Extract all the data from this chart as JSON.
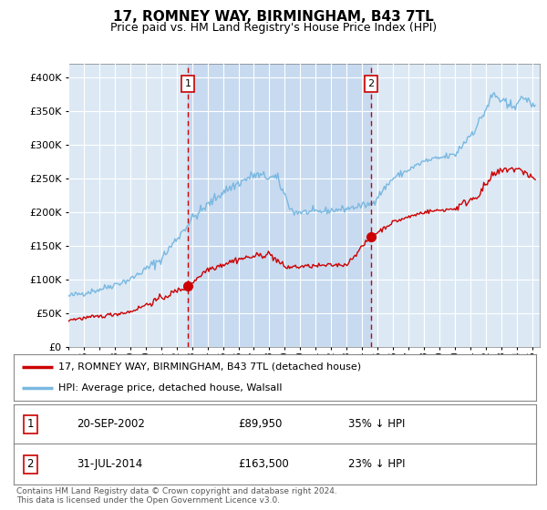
{
  "title": "17, ROMNEY WAY, BIRMINGHAM, B43 7TL",
  "subtitle": "Price paid vs. HM Land Registry's House Price Index (HPI)",
  "bg_color": "#dce9f5",
  "hpi_color": "#7ab8e0",
  "price_color": "#cc0000",
  "vline_color": "#cc0000",
  "marker_color": "#cc0000",
  "shade_color": "#c5d9f0",
  "ylim": [
    0,
    420000
  ],
  "yticks": [
    0,
    50000,
    100000,
    150000,
    200000,
    250000,
    300000,
    350000,
    400000
  ],
  "sale1_date_num": 2002.72,
  "sale1_price": 89950,
  "sale2_date_num": 2014.58,
  "sale2_price": 163500,
  "legend_line1": "17, ROMNEY WAY, BIRMINGHAM, B43 7TL (detached house)",
  "legend_line2": "HPI: Average price, detached house, Walsall",
  "footer": "Contains HM Land Registry data © Crown copyright and database right 2024.\nThis data is licensed under the Open Government Licence v3.0.",
  "xmin": 1995.0,
  "xmax": 2025.5
}
